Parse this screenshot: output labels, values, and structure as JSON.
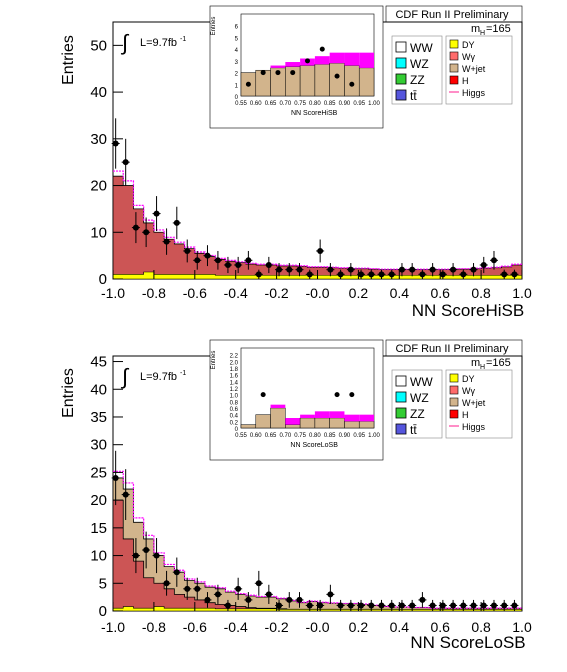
{
  "colors": {
    "DY": "#ffff00",
    "Wgamma": "#ff6b6b",
    "Wjet": "#d2b48c",
    "H": "#ff0000",
    "WW": "#ffffff",
    "WZ": "#00ffff",
    "ZZ": "#33cc33",
    "tt": "#5555dd",
    "Higgs": "#ff69b4",
    "envelope": "#ff00ff",
    "main_fill": "#cc5555"
  },
  "chart_data": [
    {
      "type": "histogram",
      "id": "hisb",
      "header": "CDF Run II Preliminary",
      "mass_label": "m",
      "mass_sub": "H",
      "mass_value": "=165",
      "lumi_text": "L=9.7fb",
      "lumi_sup": "-1",
      "integral_symbol": "∫",
      "xlabel": "NN ScoreHiSB",
      "ylabel": "Entries",
      "xlim": [
        -1.0,
        1.0
      ],
      "ylim": [
        0,
        55
      ],
      "xticks": [
        "-1.0",
        "-0.8",
        "-0.6",
        "-0.4",
        "-0.2",
        "-0.0",
        "0.2",
        "0.4",
        "0.6",
        "0.8",
        "1.0"
      ],
      "yticks": [
        "0",
        "10",
        "20",
        "30",
        "40",
        "50"
      ],
      "bins": 40,
      "stack": {
        "DY": [
          1,
          1,
          1,
          1.5,
          1,
          1,
          1,
          1,
          1,
          1,
          0.8,
          0.8,
          0.8,
          0.8,
          0.8,
          0.8,
          0.8,
          0.8,
          0.8,
          0.8,
          0.8,
          0.8,
          0.8,
          0.8,
          0.8,
          0.8,
          0.8,
          0.8,
          0.8,
          0.8,
          0.8,
          0.8,
          0.8,
          0.8,
          0.8,
          0.8,
          0.8,
          0.8,
          0.8,
          0.8
        ],
        "total": [
          22,
          20,
          15,
          12,
          10,
          8.5,
          7.5,
          6.5,
          5.5,
          4.8,
          4.2,
          3.8,
          3.5,
          3.2,
          3,
          3,
          2.8,
          2.8,
          2.7,
          2.5,
          2.5,
          2.4,
          2.3,
          2.2,
          2.2,
          2.1,
          2,
          2,
          2,
          2,
          2,
          2,
          2,
          2.1,
          2.1,
          2.2,
          2.3,
          2.4,
          2.6,
          3
        ]
      },
      "data_points": {
        "x": [
          -0.987,
          -0.938,
          -0.888,
          -0.838,
          -0.787,
          -0.738,
          -0.688,
          -0.637,
          -0.588,
          -0.538,
          -0.487,
          -0.438,
          -0.388,
          -0.338,
          -0.287,
          -0.238,
          -0.188,
          -0.138,
          -0.088,
          -0.038,
          0.013,
          0.063,
          0.113,
          0.163,
          0.213,
          0.263,
          0.313,
          0.363,
          0.413,
          0.463,
          0.513,
          0.563,
          0.613,
          0.663,
          0.713,
          0.763,
          0.813,
          0.863,
          0.913,
          0.963
        ],
        "y": [
          29,
          25,
          11,
          10,
          14,
          8,
          12,
          6,
          4,
          5,
          4,
          3,
          3,
          4,
          1,
          3,
          2,
          2,
          2,
          1,
          6,
          2,
          1,
          2,
          1,
          1,
          1,
          1,
          2,
          2,
          1,
          2,
          1,
          2,
          1,
          2,
          3,
          4,
          1,
          1
        ]
      },
      "legend": {
        "left": [
          "WW",
          "WZ",
          "ZZ",
          "tt̄"
        ],
        "right": [
          "DY",
          "Wγ",
          "W+jet",
          "H",
          "Higgs"
        ]
      },
      "inset": {
        "xlabel": "NN ScoreHiSB",
        "ylabel": "Entries",
        "xlim": [
          0.55,
          1.0
        ],
        "ylim": [
          0,
          7
        ],
        "xticks": [
          "0.55",
          "0.60",
          "0.65",
          "0.70",
          "0.75",
          "0.80",
          "0.85",
          "0.90",
          "0.95",
          "1.00"
        ],
        "yticks": [
          "0",
          "1",
          "2",
          "3",
          "4",
          "5",
          "6"
        ],
        "bins": 9,
        "main": [
          2,
          2.2,
          2.4,
          2.5,
          2.6,
          2.7,
          2.8,
          2.6,
          2.4
        ],
        "signal": [
          0,
          0,
          0.2,
          0.4,
          0.6,
          0.7,
          0.9,
          1.1,
          1.3
        ],
        "data_x": [
          0.575,
          0.625,
          0.675,
          0.725,
          0.775,
          0.825,
          0.875,
          0.925,
          0.975
        ],
        "data_y": [
          1,
          2,
          2,
          2,
          3,
          4,
          1.7,
          1,
          0
        ]
      }
    },
    {
      "type": "histogram",
      "id": "losb",
      "header": "CDF Run II Preliminary",
      "mass_label": "m",
      "mass_sub": "H",
      "mass_value": "=165",
      "lumi_text": "L=9.7fb",
      "lumi_sup": "-1",
      "integral_symbol": "∫",
      "xlabel": "NN ScoreLoSB",
      "ylabel": "Entries",
      "xlim": [
        -1.0,
        1.0
      ],
      "ylim": [
        0,
        46
      ],
      "xticks": [
        "-1.0",
        "-0.8",
        "-0.6",
        "-0.4",
        "-0.2",
        "-0.0",
        "0.2",
        "0.4",
        "0.6",
        "0.8",
        "1.0"
      ],
      "yticks": [
        "0",
        "5",
        "10",
        "15",
        "20",
        "25",
        "30",
        "35",
        "40",
        "45"
      ],
      "bins": 40,
      "stack": {
        "DY": [
          0.5,
          0.8,
          0.5,
          0.5,
          0.8,
          0.5,
          0.5,
          0.5,
          0.5,
          0.5,
          0.4,
          0.4,
          0.4,
          0.4,
          0.4,
          0.4,
          0.3,
          0.3,
          0.3,
          0.3,
          0.3,
          0.3,
          0.3,
          0.3,
          0.3,
          0.3,
          0.3,
          0.3,
          0.3,
          0.3,
          0.3,
          0.3,
          0.3,
          0.3,
          0.3,
          0.3,
          0.3,
          0.3,
          0.3,
          0.3
        ],
        "main": [
          20,
          13,
          9,
          6,
          5,
          4,
          3,
          2.5,
          2,
          1.5,
          1.2,
          1,
          0.8,
          0.6,
          0.5,
          0.5,
          0.4,
          0.3,
          0.3,
          0.3,
          0.3,
          0.3,
          0.3,
          0.3,
          0.3,
          0.3,
          0.3,
          0.3,
          0.2,
          0.2,
          0.2,
          0.2,
          0.2,
          0.2,
          0.2,
          0.2,
          0.2,
          0.2,
          0.2,
          0.2
        ],
        "total": [
          24,
          22,
          16,
          13,
          10,
          8,
          7,
          5.5,
          5,
          4.3,
          4,
          3.4,
          3,
          2.7,
          2.5,
          2.5,
          2.2,
          1.8,
          1.5,
          1.7,
          1.5,
          1.4,
          1.3,
          1.3,
          1.2,
          1,
          0.8,
          0.7,
          0.7,
          0.6,
          0.6,
          0.5,
          0.5,
          0.5,
          0.5,
          0.5,
          0.5,
          0.5,
          0.5,
          0.5
        ]
      },
      "data_points": {
        "x": [
          -0.987,
          -0.938,
          -0.888,
          -0.838,
          -0.787,
          -0.738,
          -0.688,
          -0.637,
          -0.588,
          -0.538,
          -0.487,
          -0.438,
          -0.388,
          -0.338,
          -0.287,
          -0.238,
          -0.188,
          -0.138,
          -0.088,
          -0.038,
          0.013,
          0.063,
          0.113,
          0.163,
          0.213,
          0.263,
          0.313,
          0.363,
          0.413,
          0.463,
          0.513,
          0.563,
          0.613,
          0.663,
          0.713,
          0.763,
          0.813,
          0.863,
          0.913,
          0.963
        ],
        "y": [
          24,
          21,
          10,
          11,
          10,
          5,
          7,
          4,
          4,
          2,
          3,
          1,
          4,
          2,
          5,
          3,
          1,
          2,
          2,
          1,
          1,
          3,
          1,
          1,
          1,
          1,
          1,
          1,
          1,
          1,
          2,
          1,
          1,
          1,
          1,
          1,
          1,
          1,
          1,
          1
        ]
      },
      "legend": {
        "left": [
          "WW",
          "WZ",
          "ZZ",
          "tt̄"
        ],
        "right": [
          "DY",
          "Wγ",
          "W+jet",
          "H",
          "Higgs"
        ]
      },
      "inset": {
        "xlabel": "NN ScoreLoSB",
        "ylabel": "Entries",
        "xlim": [
          0.55,
          1.0
        ],
        "ylim": [
          0,
          2.4
        ],
        "xticks": [
          "0.55",
          "0.60",
          "0.65",
          "0.70",
          "0.75",
          "0.80",
          "0.85",
          "0.90",
          "0.95",
          "1.00"
        ],
        "yticks": [
          "0",
          "0.2",
          "0.4",
          "0.6",
          "0.8",
          "1.0",
          "1.2",
          "1.4",
          "1.6",
          "1.8",
          "2.0",
          "2.2"
        ],
        "bins": 9,
        "main": [
          0.1,
          0.4,
          0.6,
          0.1,
          0.3,
          0.3,
          0.3,
          0.2,
          0.2
        ],
        "signal": [
          0,
          0,
          0.1,
          0.2,
          0.1,
          0.2,
          0.2,
          0.2,
          0.2
        ],
        "data_x": [
          0.575,
          0.625,
          0.675,
          0.725,
          0.775,
          0.825,
          0.875,
          0.925,
          0.975
        ],
        "data_y": [
          0,
          1,
          0,
          0,
          0,
          0,
          1,
          1,
          0
        ]
      }
    }
  ]
}
